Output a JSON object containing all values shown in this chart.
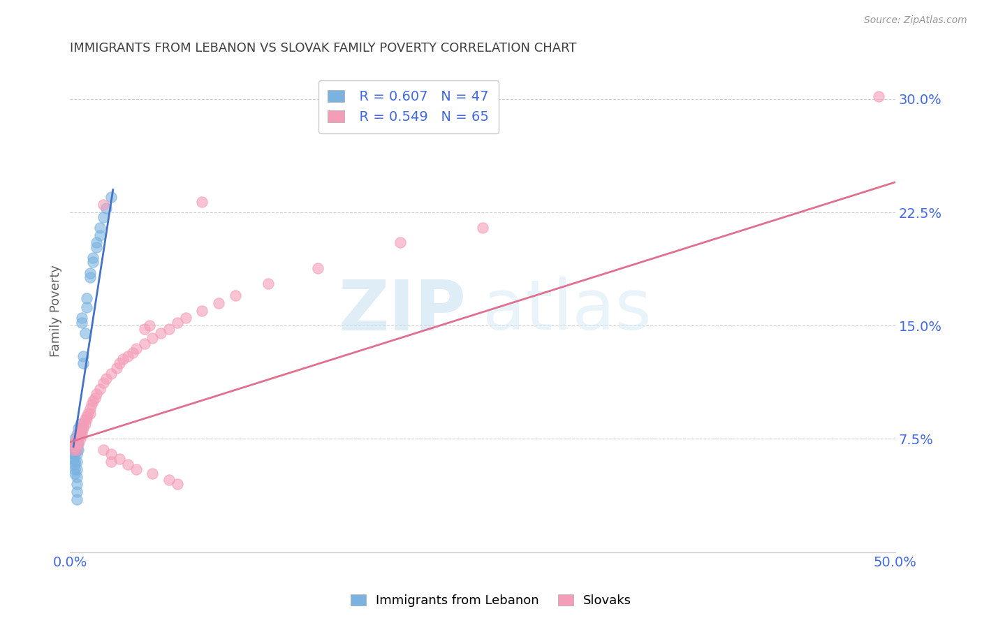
{
  "title": "IMMIGRANTS FROM LEBANON VS SLOVAK FAMILY POVERTY CORRELATION CHART",
  "source": "Source: ZipAtlas.com",
  "ylabel": "Family Poverty",
  "xlim": [
    0.0,
    0.5
  ],
  "ylim": [
    0.0,
    0.32
  ],
  "yticks": [
    0.075,
    0.15,
    0.225,
    0.3
  ],
  "ytick_labels": [
    "7.5%",
    "15.0%",
    "22.5%",
    "30.0%"
  ],
  "xticks": [
    0.0,
    0.1,
    0.2,
    0.3,
    0.4,
    0.5
  ],
  "xtick_labels": [
    "0.0%",
    "",
    "",
    "",
    "",
    "50.0%"
  ],
  "watermark_zip": "ZIP",
  "watermark_atlas": "atlas",
  "legend_r1": "R = 0.607",
  "legend_n1": "N = 47",
  "legend_r2": "R = 0.549",
  "legend_n2": "N = 65",
  "blue_color": "#7ab3e0",
  "pink_color": "#f49db8",
  "line_blue": "#4472c4",
  "line_pink": "#e07090",
  "title_color": "#404040",
  "axis_label_color": "#606060",
  "tick_color": "#4169e1",
  "grid_color": "#d0d0d0",
  "blue_scatter": [
    [
      0.002,
      0.07
    ],
    [
      0.002,
      0.068
    ],
    [
      0.002,
      0.065
    ],
    [
      0.002,
      0.062
    ],
    [
      0.003,
      0.075
    ],
    [
      0.003,
      0.072
    ],
    [
      0.003,
      0.068
    ],
    [
      0.003,
      0.065
    ],
    [
      0.003,
      0.06
    ],
    [
      0.003,
      0.058
    ],
    [
      0.003,
      0.055
    ],
    [
      0.003,
      0.052
    ],
    [
      0.004,
      0.078
    ],
    [
      0.004,
      0.075
    ],
    [
      0.004,
      0.072
    ],
    [
      0.004,
      0.068
    ],
    [
      0.004,
      0.065
    ],
    [
      0.004,
      0.06
    ],
    [
      0.004,
      0.055
    ],
    [
      0.004,
      0.05
    ],
    [
      0.004,
      0.045
    ],
    [
      0.004,
      0.04
    ],
    [
      0.004,
      0.035
    ],
    [
      0.005,
      0.082
    ],
    [
      0.005,
      0.078
    ],
    [
      0.005,
      0.072
    ],
    [
      0.005,
      0.068
    ],
    [
      0.006,
      0.085
    ],
    [
      0.006,
      0.08
    ],
    [
      0.008,
      0.13
    ],
    [
      0.008,
      0.125
    ],
    [
      0.01,
      0.168
    ],
    [
      0.01,
      0.162
    ],
    [
      0.012,
      0.185
    ],
    [
      0.012,
      0.182
    ],
    [
      0.014,
      0.195
    ],
    [
      0.014,
      0.192
    ],
    [
      0.016,
      0.205
    ],
    [
      0.016,
      0.202
    ],
    [
      0.018,
      0.215
    ],
    [
      0.018,
      0.21
    ],
    [
      0.02,
      0.222
    ],
    [
      0.022,
      0.228
    ],
    [
      0.025,
      0.235
    ],
    [
      0.007,
      0.155
    ],
    [
      0.007,
      0.152
    ],
    [
      0.009,
      0.145
    ]
  ],
  "pink_scatter": [
    [
      0.002,
      0.068
    ],
    [
      0.003,
      0.072
    ],
    [
      0.003,
      0.07
    ],
    [
      0.004,
      0.075
    ],
    [
      0.004,
      0.072
    ],
    [
      0.004,
      0.068
    ],
    [
      0.005,
      0.078
    ],
    [
      0.005,
      0.075
    ],
    [
      0.005,
      0.072
    ],
    [
      0.006,
      0.08
    ],
    [
      0.006,
      0.078
    ],
    [
      0.006,
      0.075
    ],
    [
      0.007,
      0.082
    ],
    [
      0.007,
      0.08
    ],
    [
      0.007,
      0.078
    ],
    [
      0.008,
      0.085
    ],
    [
      0.008,
      0.082
    ],
    [
      0.009,
      0.088
    ],
    [
      0.009,
      0.085
    ],
    [
      0.01,
      0.09
    ],
    [
      0.01,
      0.088
    ],
    [
      0.011,
      0.092
    ],
    [
      0.012,
      0.095
    ],
    [
      0.012,
      0.092
    ],
    [
      0.013,
      0.098
    ],
    [
      0.014,
      0.1
    ],
    [
      0.015,
      0.102
    ],
    [
      0.016,
      0.105
    ],
    [
      0.018,
      0.108
    ],
    [
      0.02,
      0.112
    ],
    [
      0.022,
      0.115
    ],
    [
      0.025,
      0.118
    ],
    [
      0.028,
      0.122
    ],
    [
      0.03,
      0.125
    ],
    [
      0.032,
      0.128
    ],
    [
      0.035,
      0.13
    ],
    [
      0.038,
      0.132
    ],
    [
      0.04,
      0.135
    ],
    [
      0.045,
      0.138
    ],
    [
      0.05,
      0.142
    ],
    [
      0.055,
      0.145
    ],
    [
      0.06,
      0.148
    ],
    [
      0.065,
      0.152
    ],
    [
      0.07,
      0.155
    ],
    [
      0.08,
      0.16
    ],
    [
      0.09,
      0.165
    ],
    [
      0.1,
      0.17
    ],
    [
      0.12,
      0.178
    ],
    [
      0.15,
      0.188
    ],
    [
      0.2,
      0.205
    ],
    [
      0.25,
      0.215
    ],
    [
      0.49,
      0.302
    ],
    [
      0.02,
      0.068
    ],
    [
      0.025,
      0.065
    ],
    [
      0.025,
      0.06
    ],
    [
      0.03,
      0.062
    ],
    [
      0.035,
      0.058
    ],
    [
      0.04,
      0.055
    ],
    [
      0.05,
      0.052
    ],
    [
      0.06,
      0.048
    ],
    [
      0.065,
      0.045
    ],
    [
      0.02,
      0.23
    ],
    [
      0.08,
      0.232
    ],
    [
      0.045,
      0.148
    ],
    [
      0.048,
      0.15
    ]
  ],
  "blue_line_x": [
    0.002,
    0.026
  ],
  "blue_line_y": [
    0.07,
    0.24
  ],
  "pink_line_x": [
    0.0,
    0.5
  ],
  "pink_line_y": [
    0.073,
    0.245
  ]
}
